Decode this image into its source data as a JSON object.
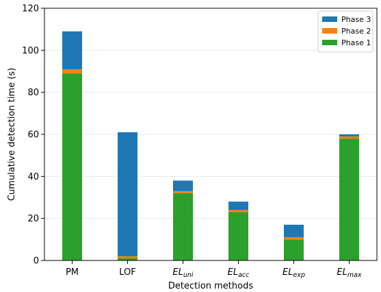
{
  "chart_data": {
    "type": "bar",
    "stacked": true,
    "xlabel": "Detection methods",
    "ylabel": "Cumulative detection time (s)",
    "ylim": [
      0,
      120
    ],
    "yticks": [
      0,
      20,
      40,
      60,
      80,
      100,
      120
    ],
    "grid": "horizontal",
    "legend_position": "top-right",
    "categories": [
      {
        "label": "PM",
        "main": "PM",
        "sub": "",
        "italic": false
      },
      {
        "label": "LOF",
        "main": "LOF",
        "sub": "",
        "italic": false
      },
      {
        "label": "EL_uni",
        "main": "EL",
        "sub": "uni",
        "italic": true
      },
      {
        "label": "EL_acc",
        "main": "EL",
        "sub": "acc",
        "italic": true
      },
      {
        "label": "EL_exp",
        "main": "EL",
        "sub": "exp",
        "italic": true
      },
      {
        "label": "EL_max",
        "main": "EL",
        "sub": "max",
        "italic": true
      }
    ],
    "series": [
      {
        "name": "Phase 1",
        "color": "#2ca02c",
        "values": [
          89,
          1,
          32,
          23,
          10,
          58
        ]
      },
      {
        "name": "Phase 2",
        "color": "#ff7f0e",
        "values": [
          2,
          1,
          1,
          1,
          1,
          1
        ]
      },
      {
        "name": "Phase 3",
        "color": "#1f77b4",
        "values": [
          18,
          59,
          5,
          4,
          6,
          1
        ]
      }
    ],
    "legend_order": [
      "Phase 3",
      "Phase 2",
      "Phase 1"
    ]
  }
}
